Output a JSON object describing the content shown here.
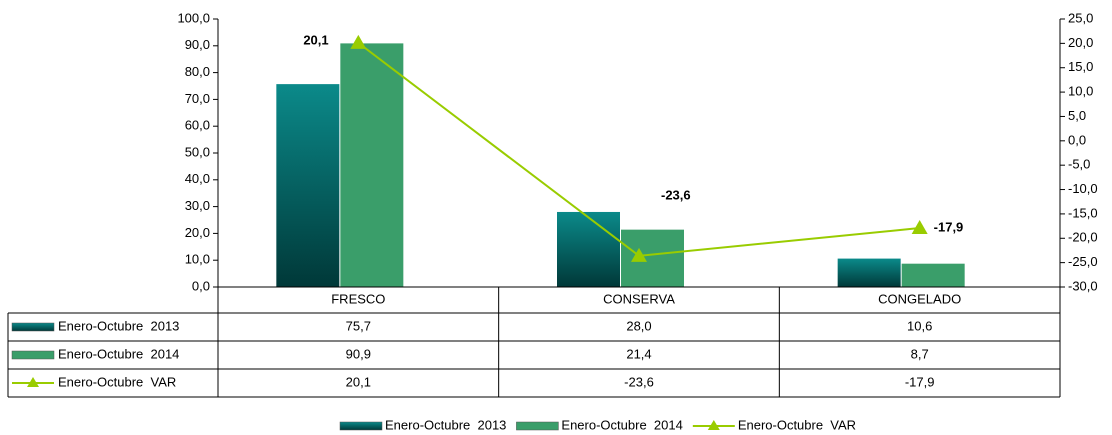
{
  "chart_data": {
    "type": "bar",
    "categories": [
      "FRESCO",
      "CONSERVA",
      "CONGELADO"
    ],
    "series": [
      {
        "name": "Enero-Octubre  2013",
        "color": "#0b7f7f",
        "values": [
          75.7,
          28.0,
          10.6
        ],
        "value_labels": [
          "75,7",
          "28,0",
          "10,6"
        ]
      },
      {
        "name": "Enero-Octubre  2014",
        "color": "#3a9e6a",
        "values": [
          90.9,
          21.4,
          8.7
        ],
        "value_labels": [
          "90,9",
          "21,4",
          "8,7"
        ]
      },
      {
        "name": "Enero-Octubre  VAR",
        "color": "#99cc00",
        "type": "line",
        "axis": "y2",
        "values": [
          20.1,
          -23.6,
          -17.9
        ],
        "value_labels": [
          "20,1",
          "-23,6",
          "-17,9"
        ]
      }
    ],
    "ylim": [
      0,
      100
    ],
    "yticks": [
      {
        "value": 0,
        "label": "0,0"
      },
      {
        "value": 10,
        "label": "10,0"
      },
      {
        "value": 20,
        "label": "20,0"
      },
      {
        "value": 30,
        "label": "30,0"
      },
      {
        "value": 40,
        "label": "40,0"
      },
      {
        "value": 50,
        "label": "50,0"
      },
      {
        "value": 60,
        "label": "60,0"
      },
      {
        "value": 70,
        "label": "70,0"
      },
      {
        "value": 80,
        "label": "80,0"
      },
      {
        "value": 90,
        "label": "90,0"
      },
      {
        "value": 100,
        "label": "100,0"
      }
    ],
    "y2lim": [
      -30,
      25
    ],
    "y2ticks": [
      {
        "value": -30,
        "label": "-30,0"
      },
      {
        "value": -25,
        "label": "-25,0"
      },
      {
        "value": -20,
        "label": "-20,0"
      },
      {
        "value": -15,
        "label": "-15,0"
      },
      {
        "value": -10,
        "label": "-10,0"
      },
      {
        "value": -5,
        "label": "-5,0"
      },
      {
        "value": 0,
        "label": "0,0"
      },
      {
        "value": 5,
        "label": "5,0"
      },
      {
        "value": 10,
        "label": "10,0"
      },
      {
        "value": 15,
        "label": "15,0"
      },
      {
        "value": 20,
        "label": "20,0"
      },
      {
        "value": 25,
        "label": "25,0"
      }
    ],
    "grid": false,
    "legend": "bottom"
  }
}
